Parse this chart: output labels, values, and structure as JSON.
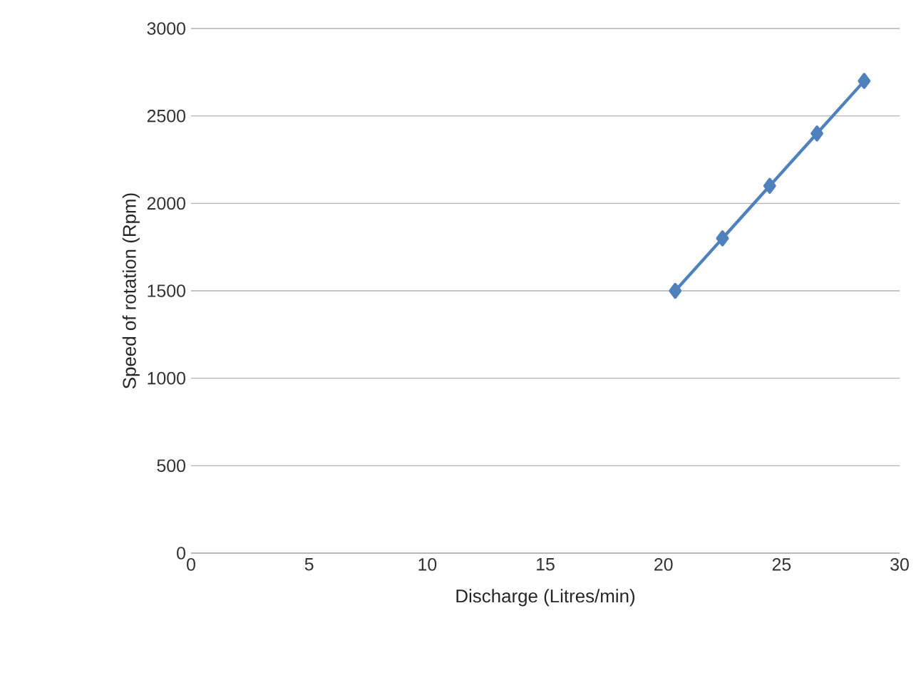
{
  "chart_data": {
    "type": "line",
    "xlabel": "Discharge (Litres/min)",
    "ylabel": "Speed of rotation (Rpm)",
    "x": [
      20.5,
      22.5,
      24.5,
      26.5,
      28.5
    ],
    "series": [
      {
        "color": "#4f81bd",
        "values": [
          1500,
          1800,
          2100,
          2400,
          2700
        ]
      }
    ],
    "xlim": [
      0,
      30
    ],
    "xticks": [
      0,
      5,
      10,
      15,
      20,
      25,
      30
    ],
    "ylim": [
      0,
      3000
    ],
    "yticks": [
      0,
      500,
      1000,
      1500,
      2000,
      2500,
      3000
    ],
    "grid": "y",
    "marker": "diamond",
    "line_style": "solid"
  }
}
